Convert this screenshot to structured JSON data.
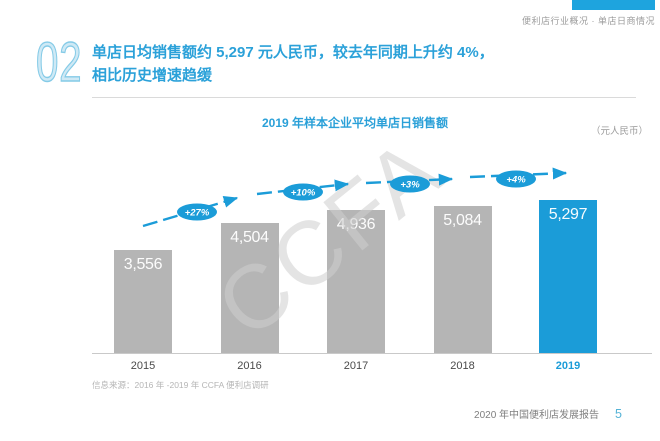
{
  "page": {
    "breadcrumb": "便利店行业概况 · 单店日商情况",
    "section_number": "02",
    "heading_line1": "单店日均销售额约 5,297 元人民币，较去年同期上升约 4%，",
    "heading_line2": "相比历史增速趋缓",
    "watermark": "CCFA",
    "source_note": "信息来源：2016 年 -2019 年 CCFA 便利店调研",
    "footer_title": "2020 年中国便利店发展报告",
    "page_number": "5"
  },
  "colors": {
    "accent_blue": "#1b9cd8",
    "bar_gray": "#b5b5b5",
    "heading_blue": "#2ba1d9",
    "top_bar_blue": "#1ea4de"
  },
  "chart_data": {
    "type": "bar",
    "title": "2019 年样本企业平均单店日销售额",
    "unit_label": "（元人民币）",
    "categories": [
      "2015",
      "2016",
      "2017",
      "2018",
      "2019"
    ],
    "values": [
      3556,
      4504,
      4936,
      5084,
      5297
    ],
    "value_labels": [
      "3,556",
      "4,504",
      "4,936",
      "5,084",
      "5,297"
    ],
    "growth_labels": [
      "+27%",
      "+10%",
      "+3%",
      "+4%"
    ],
    "highlight_index": 4,
    "bar_color": "#b5b5b5",
    "highlight_color": "#1b9cd8",
    "trend_color": "#1b9cd8",
    "ylim": [
      0,
      5600
    ],
    "grid": false,
    "legend": false
  }
}
